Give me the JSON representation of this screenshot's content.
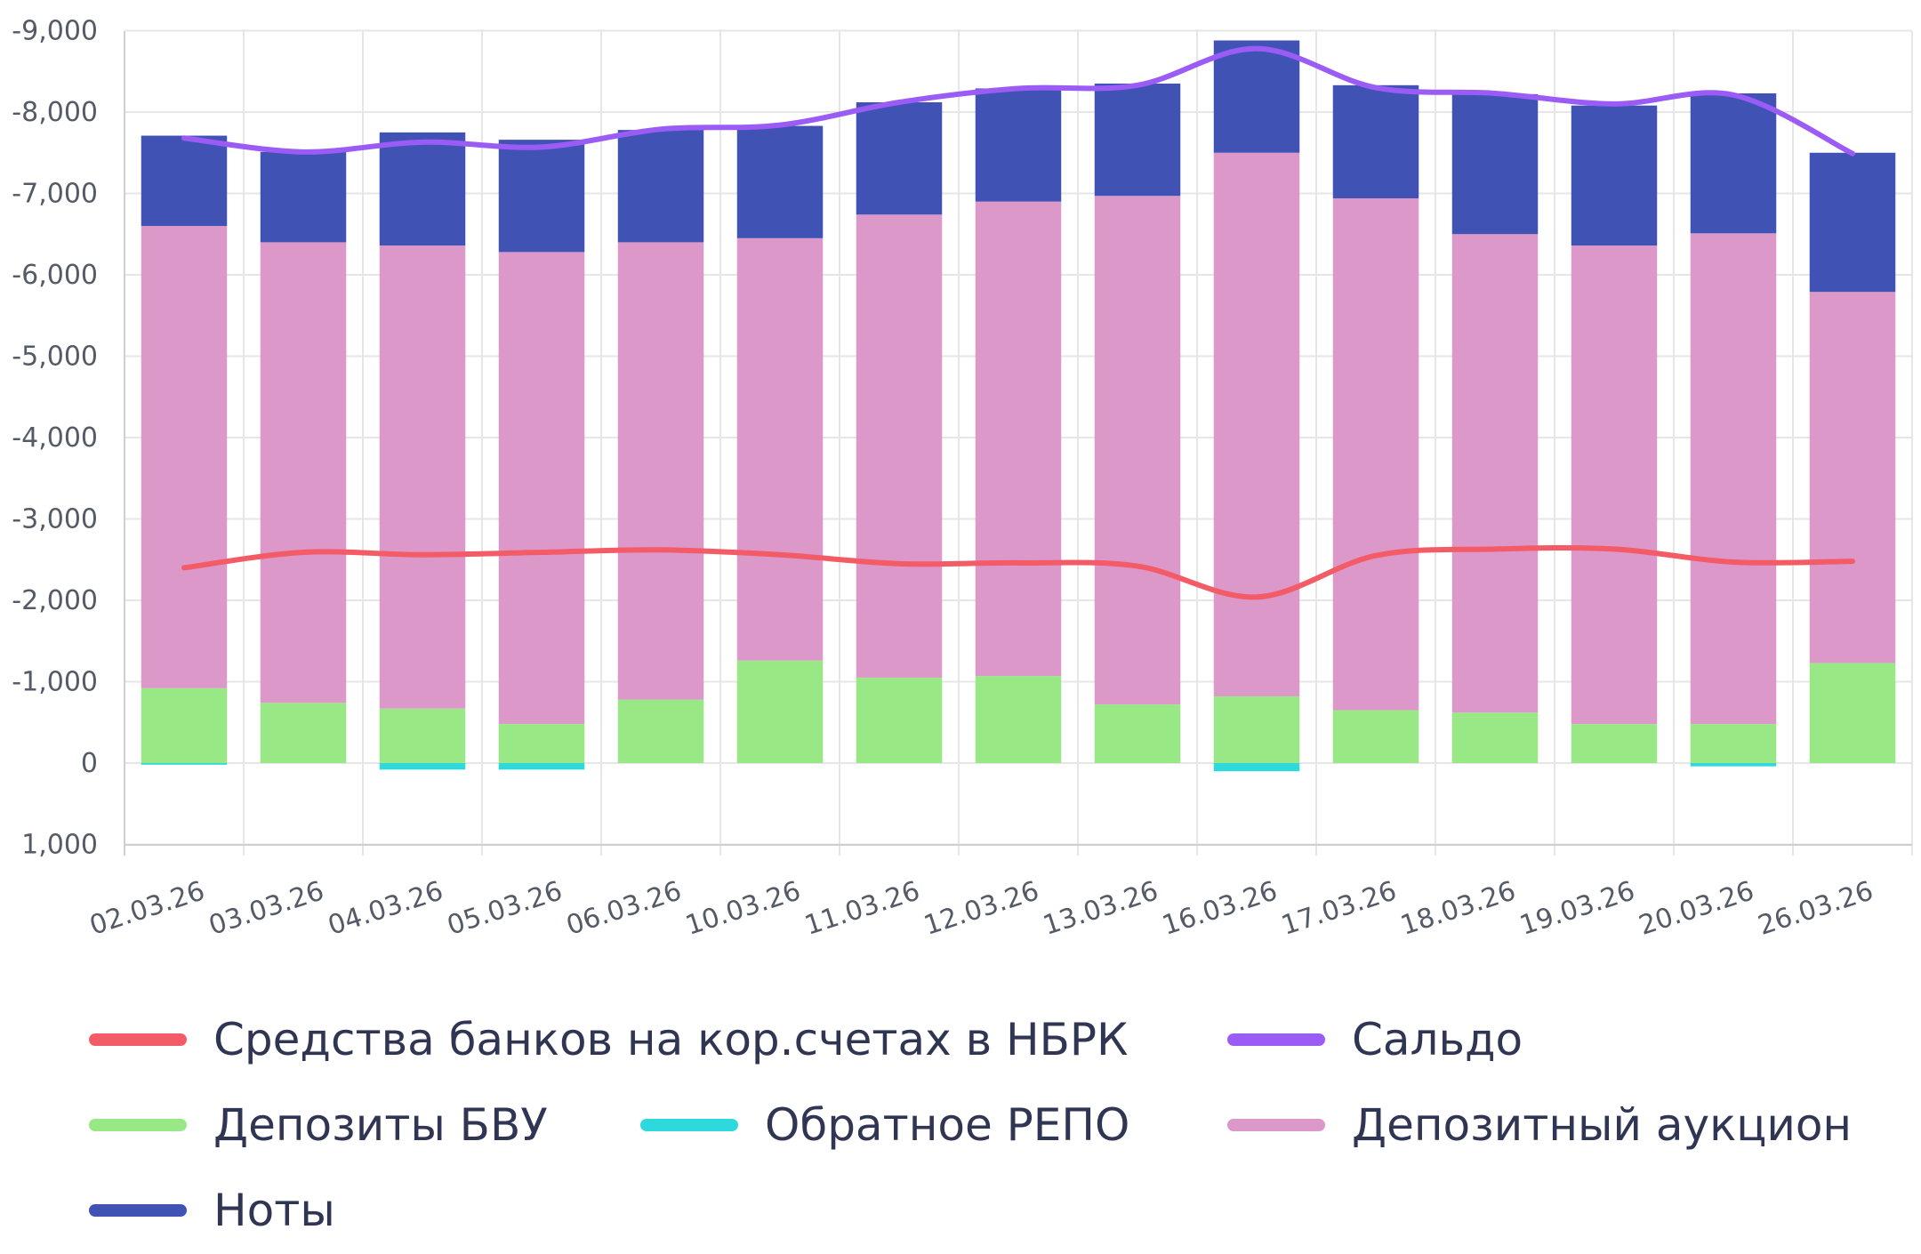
{
  "chart_data": {
    "type": "bar",
    "stacked": true,
    "categories": [
      "02.03.26",
      "03.03.26",
      "04.03.26",
      "05.03.26",
      "06.03.26",
      "10.03.26",
      "11.03.26",
      "12.03.26",
      "13.03.26",
      "16.03.26",
      "17.03.26",
      "18.03.26",
      "19.03.26",
      "20.03.26",
      "26.03.26"
    ],
    "y_tick_labels": [
      "-9,000",
      "-8,000",
      "-7,000",
      "-6,000",
      "-5,000",
      "-4,000",
      "-3,000",
      "-2,000",
      "-1,000",
      "0",
      "1,000"
    ],
    "ylim": [
      1000,
      -9000
    ],
    "y_reversed": true,
    "grid": true,
    "legend_position": "bottom",
    "series": [
      {
        "name": "Депозиты БВУ",
        "kind": "bar",
        "color": "#98e986",
        "values": [
          -920,
          -740,
          -670,
          -480,
          -780,
          -1260,
          -1050,
          -1070,
          -720,
          -820,
          -650,
          -620,
          -480,
          -480,
          -1230
        ]
      },
      {
        "name": "Обратное РЕПО",
        "kind": "bar",
        "color": "#2ed9de",
        "values": [
          20,
          0,
          80,
          80,
          0,
          0,
          0,
          0,
          0,
          100,
          0,
          0,
          0,
          40,
          0
        ]
      },
      {
        "name": "Депозитный аукцион",
        "kind": "bar",
        "color": "#db98c9",
        "values": [
          -5680,
          -5660,
          -5690,
          -5800,
          -5620,
          -5190,
          -5690,
          -5830,
          -6250,
          -6680,
          -6290,
          -5880,
          -5880,
          -6030,
          -4560
        ]
      },
      {
        "name": "Ноты",
        "kind": "bar",
        "color": "#4152b5",
        "values": [
          -1110,
          -1110,
          -1390,
          -1380,
          -1380,
          -1380,
          -1380,
          -1390,
          -1380,
          -1380,
          -1390,
          -1720,
          -1720,
          -1720,
          -1710
        ]
      },
      {
        "name": "Средства банков на кор.счетах в НБРК",
        "kind": "line",
        "color": "#f35b66",
        "values": [
          -2400,
          -2590,
          -2560,
          -2590,
          -2620,
          -2560,
          -2450,
          -2460,
          -2420,
          -2040,
          -2550,
          -2630,
          -2630,
          -2470,
          -2480
        ]
      },
      {
        "name": "Сальдо",
        "kind": "line",
        "color": "#9b5cf5",
        "values": [
          -7680,
          -7510,
          -7630,
          -7570,
          -7790,
          -7840,
          -8120,
          -8290,
          -8330,
          -8780,
          -8300,
          -8230,
          -8100,
          -8210,
          -7490
        ]
      }
    ]
  },
  "legend": {
    "items": [
      {
        "label": "Средства банков на кор.счетах в НБРК",
        "color": "#f35b66"
      },
      {
        "label": "Сальдо",
        "color": "#9b5cf5"
      },
      {
        "label": "Депозиты БВУ",
        "color": "#98e986"
      },
      {
        "label": "Обратное РЕПО",
        "color": "#2ed9de"
      },
      {
        "label": "Депозитный аукцион",
        "color": "#db98c9"
      },
      {
        "label": "Ноты",
        "color": "#4152b5"
      }
    ]
  }
}
